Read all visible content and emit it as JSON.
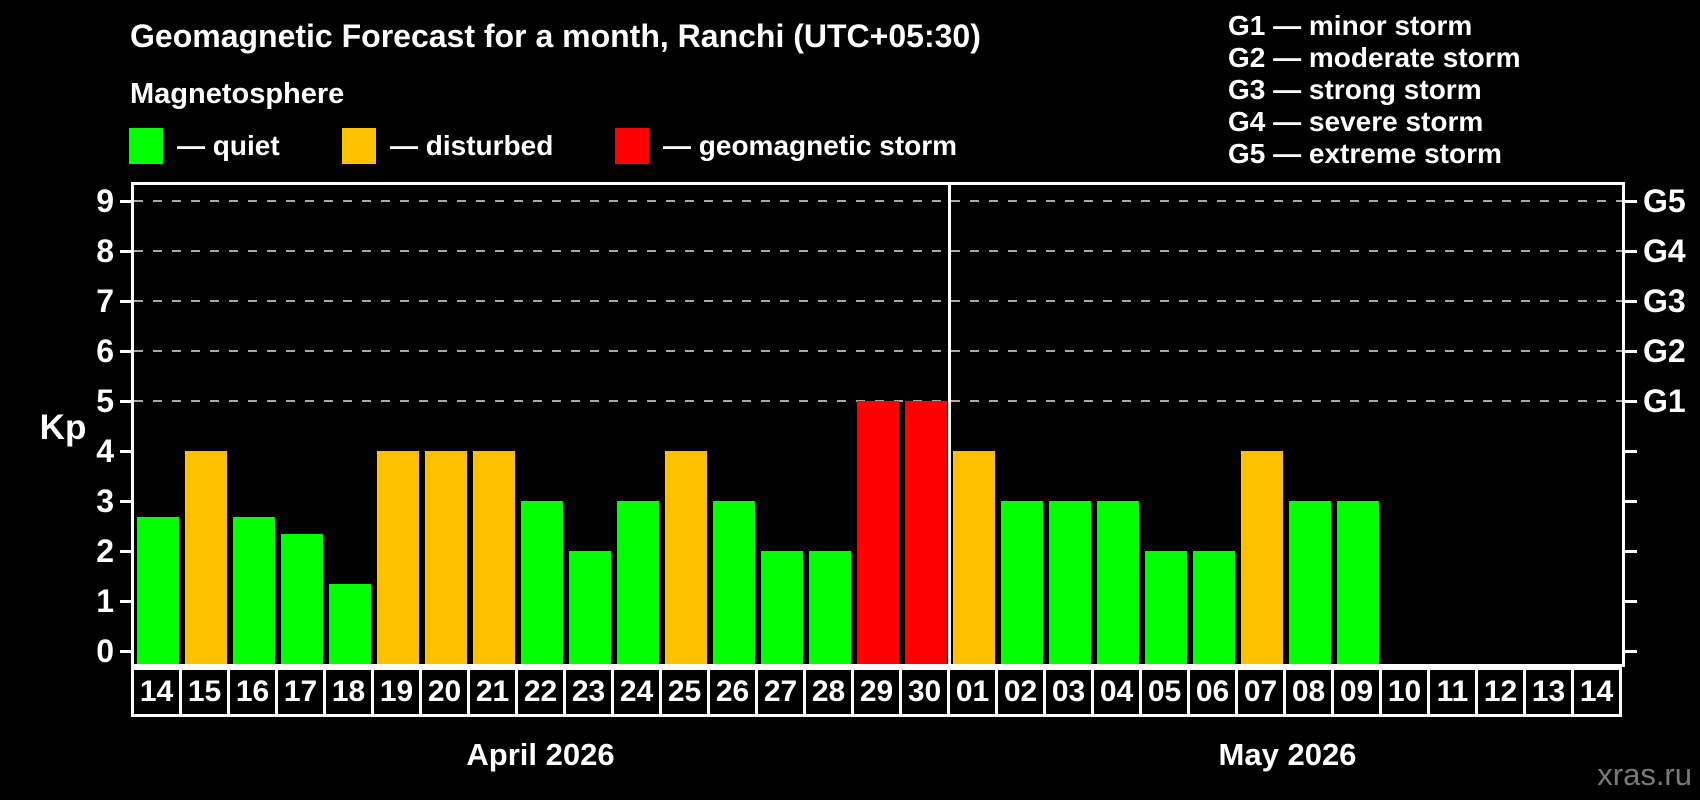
{
  "header": {
    "title": "Geomagnetic Forecast for a month, Ranchi (UTC+05:30)",
    "subtitle": "Magnetosphere"
  },
  "legend": {
    "items": [
      {
        "key": "quiet",
        "label": "— quiet",
        "color": "#00ff00"
      },
      {
        "key": "disturbed",
        "label": "— disturbed",
        "color": "#ffc000"
      },
      {
        "key": "storm",
        "label": "— geomagnetic storm",
        "color": "#ff0000"
      }
    ]
  },
  "g_legend": {
    "items": [
      "G1 — minor storm",
      "G2 — moderate storm",
      "G3 — strong storm",
      "G4 — severe storm",
      "G5 — extreme storm"
    ]
  },
  "watermark": "xras.ru",
  "chart_data": {
    "type": "bar",
    "title": "Geomagnetic Forecast for a month, Ranchi (UTC+05:30)",
    "ylabel": "Kp",
    "ylim": [
      0,
      9
    ],
    "yticks": [
      0,
      1,
      2,
      3,
      4,
      5,
      6,
      7,
      8,
      9
    ],
    "gridlines_at_kp": [
      5,
      6,
      7,
      8,
      9
    ],
    "grid": "dashed horizontal lines at G-storm levels only",
    "legend_position": "top-left",
    "right_axis": [
      {
        "kp": 5,
        "label": "G1"
      },
      {
        "kp": 6,
        "label": "G2"
      },
      {
        "kp": 7,
        "label": "G3"
      },
      {
        "kp": 8,
        "label": "G4"
      },
      {
        "kp": 9,
        "label": "G5"
      }
    ],
    "level_colors": {
      "quiet": "#00ff00",
      "disturbed": "#ffc000",
      "storm": "#ff0000"
    },
    "months": [
      {
        "label": "April 2026",
        "month": "april",
        "bars": [
          {
            "day": "14",
            "kp": 2.67,
            "level": "quiet"
          },
          {
            "day": "15",
            "kp": 4,
            "level": "disturbed"
          },
          {
            "day": "16",
            "kp": 2.67,
            "level": "quiet"
          },
          {
            "day": "17",
            "kp": 2.33,
            "level": "quiet"
          },
          {
            "day": "18",
            "kp": 1.33,
            "level": "quiet"
          },
          {
            "day": "19",
            "kp": 4,
            "level": "disturbed"
          },
          {
            "day": "20",
            "kp": 4,
            "level": "disturbed"
          },
          {
            "day": "21",
            "kp": 4,
            "level": "disturbed"
          },
          {
            "day": "22",
            "kp": 3,
            "level": "quiet"
          },
          {
            "day": "23",
            "kp": 2,
            "level": "quiet"
          },
          {
            "day": "24",
            "kp": 3,
            "level": "quiet"
          },
          {
            "day": "25",
            "kp": 4,
            "level": "disturbed"
          },
          {
            "day": "26",
            "kp": 3,
            "level": "quiet"
          },
          {
            "day": "27",
            "kp": 2,
            "level": "quiet"
          },
          {
            "day": "28",
            "kp": 2,
            "level": "quiet"
          },
          {
            "day": "29",
            "kp": 5,
            "level": "storm"
          },
          {
            "day": "30",
            "kp": 5,
            "level": "storm"
          }
        ]
      },
      {
        "label": "May 2026",
        "month": "may",
        "bars": [
          {
            "day": "01",
            "kp": 4,
            "level": "disturbed"
          },
          {
            "day": "02",
            "kp": 3,
            "level": "quiet"
          },
          {
            "day": "03",
            "kp": 3,
            "level": "quiet"
          },
          {
            "day": "04",
            "kp": 3,
            "level": "quiet"
          },
          {
            "day": "05",
            "kp": 2,
            "level": "quiet"
          },
          {
            "day": "06",
            "kp": 2,
            "level": "quiet"
          },
          {
            "day": "07",
            "kp": 4,
            "level": "disturbed"
          },
          {
            "day": "08",
            "kp": 3,
            "level": "quiet"
          },
          {
            "day": "09",
            "kp": 3,
            "level": "quiet"
          },
          {
            "day": "10",
            "kp": null,
            "level": null
          },
          {
            "day": "11",
            "kp": null,
            "level": null
          },
          {
            "day": "12",
            "kp": null,
            "level": null
          },
          {
            "day": "13",
            "kp": null,
            "level": null
          },
          {
            "day": "14",
            "kp": null,
            "level": null
          }
        ]
      }
    ]
  }
}
